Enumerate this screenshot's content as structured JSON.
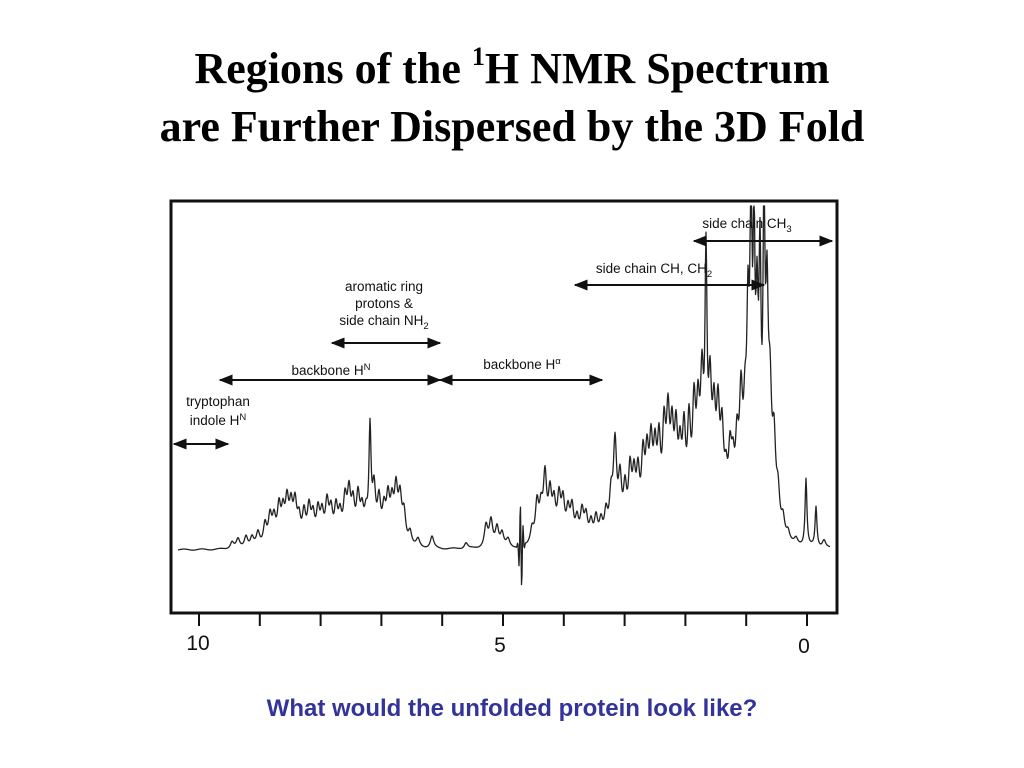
{
  "title": {
    "line1_prefix": "Regions of the ",
    "line1_sup": "1",
    "line1_suffix": "H NMR Spectrum",
    "line2": "are Further Dispersed by the 3D Fold"
  },
  "regions": {
    "tryptophan_l1": "tryptophan",
    "tryptophan_l2": "indole H",
    "tryptophan_sup": "N",
    "backbone_hn": "backbone H",
    "backbone_hn_sup": "N",
    "aromatic_l1": "aromatic ring",
    "aromatic_l2": "protons &",
    "aromatic_l3": "side chain NH",
    "aromatic_l3_sub": "2",
    "backbone_ha": "backbone H",
    "backbone_ha_sup": "α",
    "ch_ch2": "side chain CH, CH",
    "ch_ch2_sub": "2",
    "ch3": "side chain CH",
    "ch3_sub": "3"
  },
  "axis": {
    "ticks": [
      "10",
      "5",
      "0"
    ]
  },
  "question": "What would the unfolded protein look like?"
}
